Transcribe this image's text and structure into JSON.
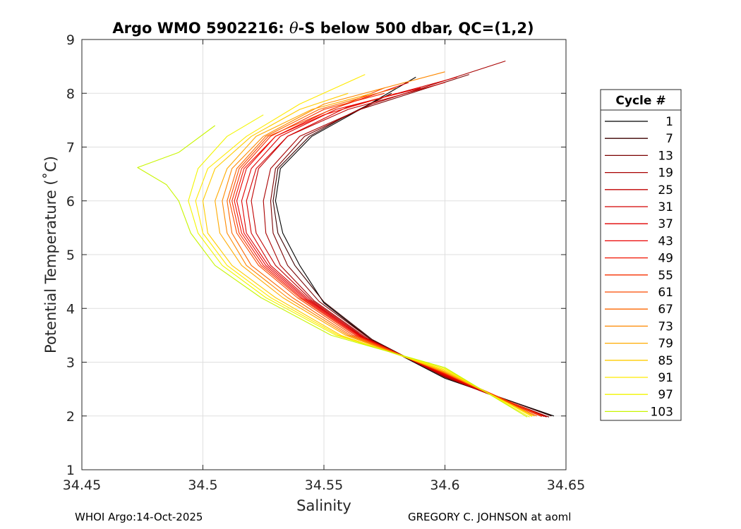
{
  "chart_data": {
    "type": "line",
    "title_prefix": "Argo WMO 5902216: ",
    "title_theta": "θ",
    "title_suffix": "-S below 500 dbar,  QC=(1,2)",
    "xlabel": "Salinity",
    "ylabel": "Potential Temperature (˚C)",
    "xlim": [
      34.45,
      34.65
    ],
    "ylim": [
      1,
      9
    ],
    "xticks": [
      34.45,
      34.5,
      34.55,
      34.6,
      34.65
    ],
    "xtick_labels": [
      "34.45",
      "34.5",
      "34.55",
      "34.6",
      "34.65"
    ],
    "yticks": [
      1,
      2,
      3,
      4,
      5,
      6,
      7,
      8,
      9
    ],
    "ytick_labels": [
      "1",
      "2",
      "3",
      "4",
      "5",
      "6",
      "7",
      "8",
      "9"
    ],
    "grid": true,
    "legend": {
      "title": "Cycle #",
      "placement": "outside-right",
      "entries": [
        {
          "label": "1",
          "color": "#000000"
        },
        {
          "label": "7",
          "color": "#3d0000"
        },
        {
          "label": "13",
          "color": "#7a0000"
        },
        {
          "label": "19",
          "color": "#a80000"
        },
        {
          "label": "25",
          "color": "#c00000"
        },
        {
          "label": "31",
          "color": "#d40000"
        },
        {
          "label": "37",
          "color": "#e00000"
        },
        {
          "label": "43",
          "color": "#ea0000"
        },
        {
          "label": "49",
          "color": "#f21300"
        },
        {
          "label": "55",
          "color": "#f72f00"
        },
        {
          "label": "61",
          "color": "#fa4a00"
        },
        {
          "label": "67",
          "color": "#fc6600"
        },
        {
          "label": "73",
          "color": "#fe8800"
        },
        {
          "label": "79",
          "color": "#ffaa00"
        },
        {
          "label": "85",
          "color": "#ffcc00"
        },
        {
          "label": "91",
          "color": "#ffea00"
        },
        {
          "label": "97",
          "color": "#f2f500"
        },
        {
          "label": "103",
          "color": "#c8f500"
        }
      ]
    },
    "series": [
      {
        "name": "1",
        "color": "#000000",
        "points": [
          [
            34.645,
            2.0
          ],
          [
            34.6,
            2.7
          ],
          [
            34.57,
            3.4
          ],
          [
            34.55,
            4.1
          ],
          [
            34.54,
            4.8
          ],
          [
            34.533,
            5.4
          ],
          [
            34.53,
            6.0
          ],
          [
            34.532,
            6.6
          ],
          [
            34.545,
            7.2
          ],
          [
            34.565,
            7.7
          ],
          [
            34.588,
            8.3
          ]
        ]
      },
      {
        "name": "7",
        "color": "#3d0000",
        "points": [
          [
            34.644,
            2.0
          ],
          [
            34.6,
            2.72
          ],
          [
            34.57,
            3.42
          ],
          [
            34.55,
            4.12
          ],
          [
            34.538,
            4.8
          ],
          [
            34.531,
            5.4
          ],
          [
            34.529,
            6.0
          ],
          [
            34.531,
            6.6
          ],
          [
            34.544,
            7.2
          ],
          [
            34.56,
            7.6
          ],
          [
            34.578,
            8.0
          ]
        ]
      },
      {
        "name": "13",
        "color": "#7a0000",
        "points": [
          [
            34.643,
            1.98
          ],
          [
            34.6,
            2.72
          ],
          [
            34.569,
            3.43
          ],
          [
            34.548,
            4.13
          ],
          [
            34.535,
            4.8
          ],
          [
            34.529,
            5.4
          ],
          [
            34.528,
            6.0
          ],
          [
            34.53,
            6.6
          ],
          [
            34.542,
            7.2
          ],
          [
            34.565,
            7.7
          ],
          [
            34.61,
            8.35
          ]
        ]
      },
      {
        "name": "19",
        "color": "#a80000",
        "points": [
          [
            34.642,
            1.98
          ],
          [
            34.6,
            2.73
          ],
          [
            34.568,
            3.44
          ],
          [
            34.546,
            4.14
          ],
          [
            34.532,
            4.8
          ],
          [
            34.526,
            5.4
          ],
          [
            34.525,
            6.0
          ],
          [
            34.528,
            6.6
          ],
          [
            34.54,
            7.2
          ],
          [
            34.57,
            7.8
          ],
          [
            34.625,
            8.6
          ]
        ]
      },
      {
        "name": "25",
        "color": "#c00000",
        "points": [
          [
            34.642,
            1.99
          ],
          [
            34.6,
            2.74
          ],
          [
            34.567,
            3.45
          ],
          [
            34.545,
            4.15
          ],
          [
            34.53,
            4.8
          ],
          [
            34.522,
            5.4
          ],
          [
            34.52,
            6.0
          ],
          [
            34.523,
            6.6
          ],
          [
            34.535,
            7.2
          ],
          [
            34.56,
            7.7
          ],
          [
            34.6,
            8.2
          ]
        ]
      },
      {
        "name": "31",
        "color": "#d40000",
        "points": [
          [
            34.641,
            1.99
          ],
          [
            34.6,
            2.75
          ],
          [
            34.566,
            3.46
          ],
          [
            34.544,
            4.16
          ],
          [
            34.528,
            4.8
          ],
          [
            34.52,
            5.4
          ],
          [
            34.518,
            6.0
          ],
          [
            34.522,
            6.6
          ],
          [
            34.535,
            7.2
          ],
          [
            34.56,
            7.75
          ],
          [
            34.605,
            8.3
          ]
        ]
      },
      {
        "name": "37",
        "color": "#e00000",
        "points": [
          [
            34.64,
            1.99
          ],
          [
            34.6,
            2.76
          ],
          [
            34.566,
            3.47
          ],
          [
            34.543,
            4.17
          ],
          [
            34.527,
            4.8
          ],
          [
            34.518,
            5.4
          ],
          [
            34.516,
            6.0
          ],
          [
            34.52,
            6.6
          ],
          [
            34.532,
            7.2
          ],
          [
            34.555,
            7.7
          ],
          [
            34.59,
            8.1
          ]
        ]
      },
      {
        "name": "43",
        "color": "#ea0000",
        "points": [
          [
            34.64,
            2.0
          ],
          [
            34.6,
            2.77
          ],
          [
            34.565,
            3.48
          ],
          [
            34.542,
            4.18
          ],
          [
            34.526,
            4.8
          ],
          [
            34.517,
            5.4
          ],
          [
            34.514,
            6.0
          ],
          [
            34.518,
            6.6
          ],
          [
            34.53,
            7.2
          ],
          [
            34.553,
            7.7
          ],
          [
            34.585,
            8.2
          ]
        ]
      },
      {
        "name": "49",
        "color": "#f21300",
        "points": [
          [
            34.64,
            2.0
          ],
          [
            34.6,
            2.78
          ],
          [
            34.564,
            3.49
          ],
          [
            34.541,
            4.19
          ],
          [
            34.525,
            4.8
          ],
          [
            34.516,
            5.4
          ],
          [
            34.513,
            6.0
          ],
          [
            34.517,
            6.6
          ],
          [
            34.53,
            7.2
          ],
          [
            34.55,
            7.6
          ],
          [
            34.58,
            8.0
          ]
        ]
      },
      {
        "name": "55",
        "color": "#f72f00",
        "points": [
          [
            34.64,
            2.0
          ],
          [
            34.6,
            2.79
          ],
          [
            34.563,
            3.5
          ],
          [
            34.54,
            4.2
          ],
          [
            34.524,
            4.8
          ],
          [
            34.515,
            5.4
          ],
          [
            34.512,
            6.0
          ],
          [
            34.516,
            6.6
          ],
          [
            34.528,
            7.2
          ],
          [
            34.55,
            7.7
          ],
          [
            34.575,
            8.0
          ]
        ]
      },
      {
        "name": "61",
        "color": "#fa4a00",
        "points": [
          [
            34.64,
            2.0
          ],
          [
            34.6,
            2.8
          ],
          [
            34.562,
            3.5
          ],
          [
            34.539,
            4.2
          ],
          [
            34.523,
            4.8
          ],
          [
            34.514,
            5.4
          ],
          [
            34.511,
            6.0
          ],
          [
            34.515,
            6.6
          ],
          [
            34.527,
            7.2
          ],
          [
            34.548,
            7.6
          ],
          [
            34.575,
            8.1
          ]
        ]
      },
      {
        "name": "67",
        "color": "#fc6600",
        "points": [
          [
            34.638,
            2.0
          ],
          [
            34.6,
            2.8
          ],
          [
            34.561,
            3.5
          ],
          [
            34.537,
            4.2
          ],
          [
            34.52,
            4.8
          ],
          [
            34.512,
            5.4
          ],
          [
            34.51,
            6.0
          ],
          [
            34.514,
            6.6
          ],
          [
            34.526,
            7.2
          ],
          [
            34.548,
            7.7
          ],
          [
            34.58,
            8.1
          ]
        ]
      },
      {
        "name": "73",
        "color": "#fe8800",
        "points": [
          [
            34.637,
            2.0
          ],
          [
            34.6,
            2.81
          ],
          [
            34.56,
            3.5
          ],
          [
            34.535,
            4.2
          ],
          [
            34.518,
            4.8
          ],
          [
            34.51,
            5.4
          ],
          [
            34.508,
            6.0
          ],
          [
            34.512,
            6.6
          ],
          [
            34.525,
            7.2
          ],
          [
            34.55,
            7.8
          ],
          [
            34.6,
            8.4
          ]
        ]
      },
      {
        "name": "79",
        "color": "#ffaa00",
        "points": [
          [
            34.637,
            2.0
          ],
          [
            34.6,
            2.82
          ],
          [
            34.559,
            3.5
          ],
          [
            34.533,
            4.2
          ],
          [
            34.516,
            4.8
          ],
          [
            34.507,
            5.4
          ],
          [
            34.505,
            6.0
          ],
          [
            34.51,
            6.6
          ],
          [
            34.522,
            7.2
          ],
          [
            34.545,
            7.7
          ],
          [
            34.57,
            8.0
          ]
        ]
      },
      {
        "name": "85",
        "color": "#ffcc00",
        "points": [
          [
            34.636,
            2.0
          ],
          [
            34.6,
            2.84
          ],
          [
            34.557,
            3.5
          ],
          [
            34.53,
            4.2
          ],
          [
            34.512,
            4.8
          ],
          [
            34.502,
            5.4
          ],
          [
            34.5,
            6.0
          ],
          [
            34.505,
            6.6
          ],
          [
            34.52,
            7.2
          ],
          [
            34.54,
            7.7
          ],
          [
            34.56,
            8.0
          ]
        ]
      },
      {
        "name": "91",
        "color": "#ffea00",
        "points": [
          [
            34.636,
            1.99
          ],
          [
            34.6,
            2.86
          ],
          [
            34.556,
            3.5
          ],
          [
            34.528,
            4.2
          ],
          [
            34.51,
            4.8
          ],
          [
            34.5,
            5.4
          ],
          [
            34.497,
            6.0
          ],
          [
            34.502,
            6.6
          ],
          [
            34.518,
            7.2
          ],
          [
            34.54,
            7.8
          ],
          [
            34.567,
            8.35
          ]
        ]
      },
      {
        "name": "97",
        "color": "#f2f500",
        "points": [
          [
            34.635,
            1.98
          ],
          [
            34.6,
            2.88
          ],
          [
            34.555,
            3.5
          ],
          [
            34.526,
            4.2
          ],
          [
            34.508,
            4.8
          ],
          [
            34.498,
            5.4
          ],
          [
            34.494,
            6.0
          ],
          [
            34.498,
            6.6
          ],
          [
            34.51,
            7.2
          ],
          [
            34.525,
            7.6
          ]
        ]
      },
      {
        "name": "103",
        "color": "#c8f500",
        "points": [
          [
            34.634,
            1.98
          ],
          [
            34.6,
            2.9
          ],
          [
            34.553,
            3.5
          ],
          [
            34.524,
            4.2
          ],
          [
            34.505,
            4.8
          ],
          [
            34.495,
            5.4
          ],
          [
            34.49,
            6.0
          ],
          [
            34.485,
            6.3
          ],
          [
            34.473,
            6.62
          ],
          [
            34.49,
            6.9
          ],
          [
            34.505,
            7.4
          ]
        ]
      }
    ]
  },
  "footer": {
    "left": "WHOI Argo:14-Oct-2025",
    "right": "GREGORY C. JOHNSON at aoml"
  }
}
